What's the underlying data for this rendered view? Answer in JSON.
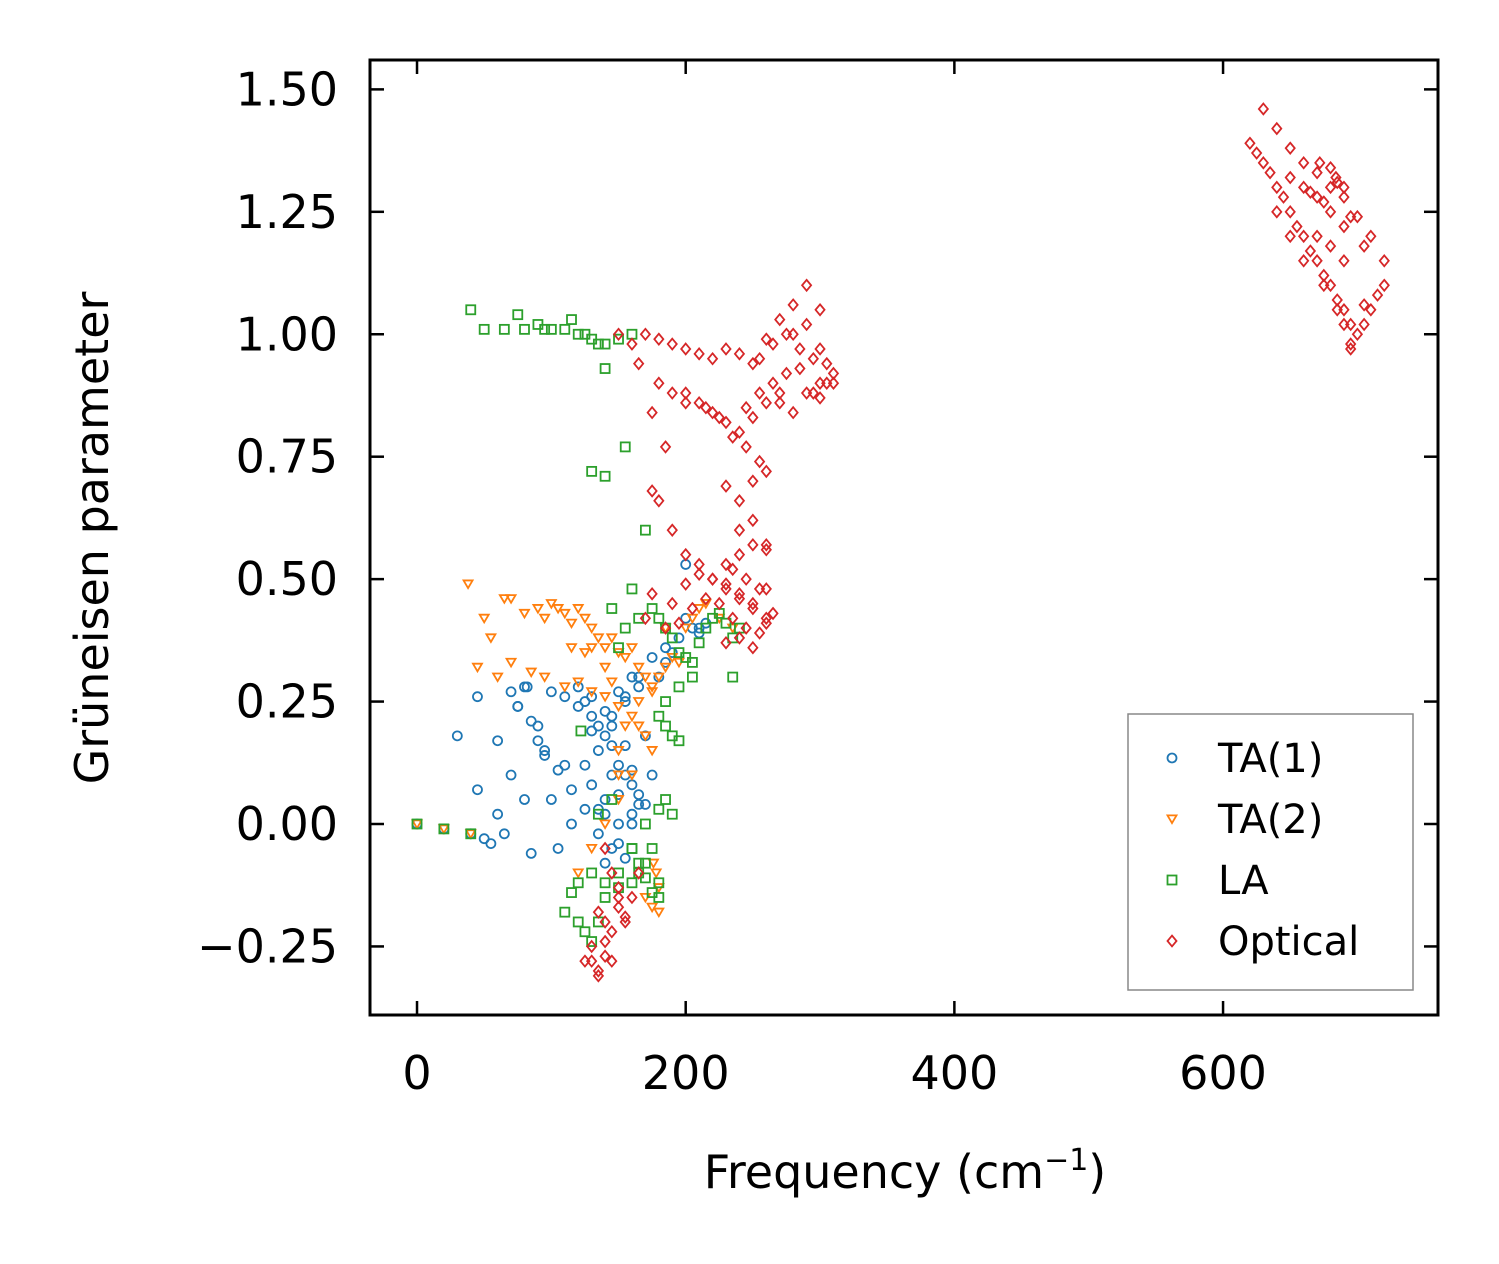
{
  "chart_data": {
    "type": "scatter",
    "title": "",
    "xlabel": "Frequency (cm",
    "xlabel_sup": "−1",
    "xlabel_close": ")",
    "ylabel": "Grüneisen parameter",
    "xlim": [
      -35,
      760
    ],
    "ylim": [
      -0.39,
      1.56
    ],
    "xticks": [
      0,
      200,
      400,
      600
    ],
    "xtick_labels": [
      "0",
      "200",
      "400",
      "600"
    ],
    "yticks": [
      -0.25,
      0,
      0.25,
      0.5,
      0.75,
      1.0,
      1.25,
      1.5
    ],
    "ytick_labels": [
      "−0.25",
      "0.00",
      "0.25",
      "0.50",
      "0.75",
      "1.00",
      "1.25",
      "1.50"
    ],
    "legend_position": "lower-right",
    "series": [
      {
        "name": "TA(1)",
        "marker": "circle",
        "color": "#1f77b4",
        "x": [
          0,
          20,
          40,
          30,
          45,
          55,
          60,
          70,
          80,
          85,
          90,
          100,
          105,
          110,
          115,
          120,
          125,
          130,
          135,
          140,
          145,
          150,
          155,
          160,
          165,
          170,
          175,
          180,
          185,
          190,
          195,
          200,
          205,
          210,
          215,
          45,
          60,
          75,
          85,
          95,
          105,
          115,
          125,
          135,
          145,
          155,
          160,
          150,
          140,
          130,
          125,
          135,
          145,
          155,
          165,
          160,
          150,
          140,
          130,
          140,
          150,
          160,
          155,
          145,
          135,
          70,
          80,
          100,
          110,
          120,
          130,
          90,
          95,
          140,
          150,
          160,
          165,
          170,
          145,
          155,
          165,
          175,
          185,
          200,
          210,
          65,
          75,
          82,
          50
        ],
        "y": [
          0.0,
          -0.01,
          -0.02,
          0.18,
          0.26,
          -0.04,
          0.02,
          0.1,
          0.05,
          -0.06,
          0.2,
          0.05,
          -0.05,
          0.12,
          0.0,
          0.24,
          0.25,
          0.22,
          0.2,
          0.18,
          0.16,
          0.12,
          0.1,
          0.08,
          0.06,
          0.04,
          0.1,
          0.3,
          0.33,
          0.35,
          0.38,
          0.42,
          0.4,
          0.4,
          0.41,
          0.07,
          0.17,
          0.24,
          0.21,
          0.15,
          0.11,
          0.07,
          0.03,
          -0.02,
          -0.05,
          -0.07,
          0.02,
          0.0,
          0.05,
          0.08,
          0.12,
          0.15,
          0.2,
          0.25,
          0.28,
          0.3,
          0.27,
          0.23,
          0.19,
          0.02,
          0.06,
          0.11,
          0.16,
          0.1,
          0.03,
          0.27,
          0.28,
          0.27,
          0.26,
          0.28,
          0.26,
          0.17,
          0.14,
          -0.08,
          -0.04,
          0.0,
          0.04,
          0.18,
          0.22,
          0.26,
          0.3,
          0.34,
          0.36,
          0.53,
          0.39,
          -0.02,
          0.24,
          0.28,
          -0.03
        ]
      },
      {
        "name": "TA(2)",
        "marker": "triangle-down",
        "color": "#ff7f0e",
        "x": [
          0,
          20,
          40,
          38,
          50,
          55,
          65,
          70,
          80,
          90,
          95,
          100,
          105,
          110,
          115,
          120,
          125,
          130,
          135,
          140,
          145,
          150,
          155,
          160,
          165,
          170,
          175,
          180,
          185,
          190,
          195,
          200,
          205,
          210,
          215,
          225,
          235,
          45,
          60,
          70,
          85,
          95,
          110,
          120,
          130,
          140,
          150,
          160,
          165,
          170,
          175,
          160,
          150,
          140,
          130,
          120,
          170,
          175,
          180,
          180,
          178,
          176,
          150,
          155,
          165,
          175,
          140,
          130,
          150,
          115,
          125,
          145,
          185
        ],
        "y": [
          0.0,
          -0.01,
          -0.02,
          0.49,
          0.42,
          0.38,
          0.46,
          0.46,
          0.43,
          0.44,
          0.42,
          0.45,
          0.44,
          0.43,
          0.41,
          0.44,
          0.42,
          0.4,
          0.38,
          0.36,
          0.38,
          0.35,
          0.34,
          0.36,
          0.32,
          0.3,
          0.28,
          0.3,
          0.32,
          0.34,
          0.33,
          0.4,
          0.42,
          0.44,
          0.45,
          0.42,
          0.4,
          0.32,
          0.3,
          0.33,
          0.31,
          0.3,
          0.28,
          0.29,
          0.27,
          0.26,
          0.24,
          0.22,
          0.2,
          0.18,
          0.15,
          0.1,
          0.05,
          0.0,
          -0.05,
          -0.1,
          -0.15,
          -0.17,
          -0.18,
          -0.13,
          -0.1,
          -0.08,
          0.15,
          0.2,
          0.25,
          0.27,
          0.32,
          0.36,
          0.1,
          0.36,
          0.35,
          0.29,
          0.4
        ]
      },
      {
        "name": "LA",
        "marker": "square",
        "color": "#2ca02c",
        "x": [
          0,
          20,
          40,
          40,
          50,
          65,
          75,
          80,
          90,
          95,
          100,
          110,
          115,
          120,
          125,
          130,
          135,
          140,
          150,
          160,
          130,
          140,
          155,
          140,
          170,
          175,
          180,
          185,
          190,
          195,
          200,
          205,
          210,
          215,
          220,
          225,
          230,
          235,
          240,
          180,
          185,
          190,
          195,
          185,
          190,
          180,
          175,
          170,
          165,
          160,
          150,
          140,
          130,
          120,
          115,
          110,
          120,
          125,
          130,
          135,
          140,
          150,
          160,
          170,
          180,
          180,
          175,
          170,
          165,
          160,
          150,
          145,
          155,
          165,
          185,
          195,
          205,
          235,
          122,
          135,
          145,
          160
        ],
        "y": [
          0.0,
          -0.01,
          -0.02,
          1.05,
          1.01,
          1.01,
          1.04,
          1.01,
          1.02,
          1.01,
          1.01,
          1.01,
          1.03,
          1.0,
          1.0,
          0.99,
          0.98,
          0.98,
          0.99,
          1.0,
          0.72,
          0.71,
          0.77,
          0.93,
          0.6,
          0.44,
          0.42,
          0.4,
          0.38,
          0.35,
          0.34,
          0.33,
          0.37,
          0.4,
          0.42,
          0.43,
          0.41,
          0.38,
          0.4,
          0.22,
          0.2,
          0.18,
          0.17,
          0.05,
          0.02,
          0.03,
          -0.05,
          -0.08,
          -0.1,
          -0.12,
          -0.13,
          -0.12,
          -0.1,
          -0.12,
          -0.14,
          -0.18,
          -0.2,
          -0.22,
          -0.24,
          -0.2,
          -0.15,
          -0.1,
          -0.05,
          0.0,
          -0.12,
          -0.15,
          -0.14,
          -0.11,
          -0.08,
          -0.05,
          0.36,
          0.44,
          0.4,
          0.42,
          0.25,
          0.28,
          0.3,
          0.3,
          0.19,
          0.02,
          0.05,
          0.48
        ]
      },
      {
        "name": "Optical",
        "marker": "diamond",
        "color": "#d62728",
        "x": [
          150,
          160,
          170,
          180,
          190,
          200,
          210,
          220,
          230,
          240,
          250,
          260,
          270,
          280,
          290,
          300,
          310,
          255,
          265,
          275,
          285,
          295,
          305,
          245,
          255,
          265,
          275,
          285,
          295,
          300,
          310,
          270,
          280,
          290,
          300,
          280,
          290,
          300,
          305,
          180,
          200,
          210,
          220,
          230,
          240,
          250,
          260,
          270,
          165,
          175,
          185,
          190,
          200,
          215,
          225,
          235,
          245,
          255,
          260,
          230,
          240,
          250,
          240,
          250,
          260,
          230,
          240,
          250,
          260,
          235,
          245,
          255,
          175,
          180,
          190,
          200,
          210,
          220,
          230,
          240,
          250,
          260,
          175,
          190,
          200,
          210,
          220,
          230,
          240,
          250,
          260,
          170,
          185,
          195,
          205,
          215,
          225,
          235,
          245,
          255,
          265,
          230,
          240,
          250,
          260,
          140,
          145,
          150,
          140,
          135,
          130,
          145,
          140,
          135,
          155,
          160,
          165,
          150,
          130,
          135,
          140,
          145,
          150,
          155,
          125,
          620,
          625,
          630,
          635,
          640,
          645,
          650,
          655,
          660,
          665,
          670,
          675,
          680,
          685,
          690,
          695,
          700,
          705,
          710,
          715,
          720,
          630,
          640,
          650,
          660,
          670,
          680,
          690,
          700,
          710,
          720,
          650,
          660,
          670,
          680,
          690,
          665,
          675,
          685,
          695,
          705,
          680,
          690,
          670,
          680,
          690,
          660,
          650,
          640,
          675,
          685,
          695,
          705,
          695,
          690,
          672,
          684
        ],
        "y": [
          1.0,
          0.98,
          1.0,
          0.99,
          0.98,
          0.97,
          0.96,
          0.95,
          0.97,
          0.96,
          0.94,
          0.99,
          1.03,
          1.06,
          1.1,
          1.05,
          0.92,
          0.95,
          0.98,
          1.0,
          0.97,
          0.95,
          0.9,
          0.85,
          0.88,
          0.9,
          0.92,
          0.93,
          0.88,
          0.87,
          0.9,
          0.86,
          0.84,
          0.88,
          0.9,
          1.0,
          1.02,
          0.97,
          0.94,
          0.9,
          0.88,
          0.86,
          0.84,
          0.82,
          0.8,
          0.83,
          0.86,
          0.88,
          0.94,
          0.84,
          0.77,
          0.88,
          0.86,
          0.85,
          0.83,
          0.79,
          0.77,
          0.74,
          0.72,
          0.69,
          0.66,
          0.7,
          0.6,
          0.62,
          0.57,
          0.53,
          0.55,
          0.57,
          0.56,
          0.52,
          0.5,
          0.48,
          0.68,
          0.66,
          0.6,
          0.55,
          0.53,
          0.5,
          0.48,
          0.46,
          0.45,
          0.48,
          0.47,
          0.45,
          0.49,
          0.51,
          0.5,
          0.49,
          0.47,
          0.44,
          0.42,
          0.42,
          0.4,
          0.41,
          0.44,
          0.46,
          0.45,
          0.42,
          0.4,
          0.39,
          0.43,
          0.37,
          0.38,
          0.36,
          0.41,
          -0.05,
          -0.1,
          -0.15,
          -0.2,
          -0.18,
          -0.25,
          -0.28,
          -0.24,
          -0.3,
          -0.2,
          -0.15,
          -0.1,
          -0.13,
          -0.28,
          -0.31,
          -0.27,
          -0.22,
          -0.17,
          -0.19,
          -0.28,
          1.39,
          1.37,
          1.35,
          1.33,
          1.3,
          1.28,
          1.25,
          1.22,
          1.2,
          1.17,
          1.15,
          1.12,
          1.1,
          1.07,
          1.05,
          1.02,
          1.0,
          1.02,
          1.05,
          1.08,
          1.1,
          1.46,
          1.42,
          1.38,
          1.35,
          1.33,
          1.3,
          1.28,
          1.24,
          1.2,
          1.15,
          1.32,
          1.3,
          1.28,
          1.25,
          1.22,
          1.29,
          1.27,
          1.31,
          1.24,
          1.18,
          1.34,
          1.3,
          1.2,
          1.18,
          1.15,
          1.15,
          1.2,
          1.25,
          1.1,
          1.05,
          0.98,
          1.06,
          0.97,
          1.02,
          1.35,
          1.32
        ]
      }
    ]
  }
}
